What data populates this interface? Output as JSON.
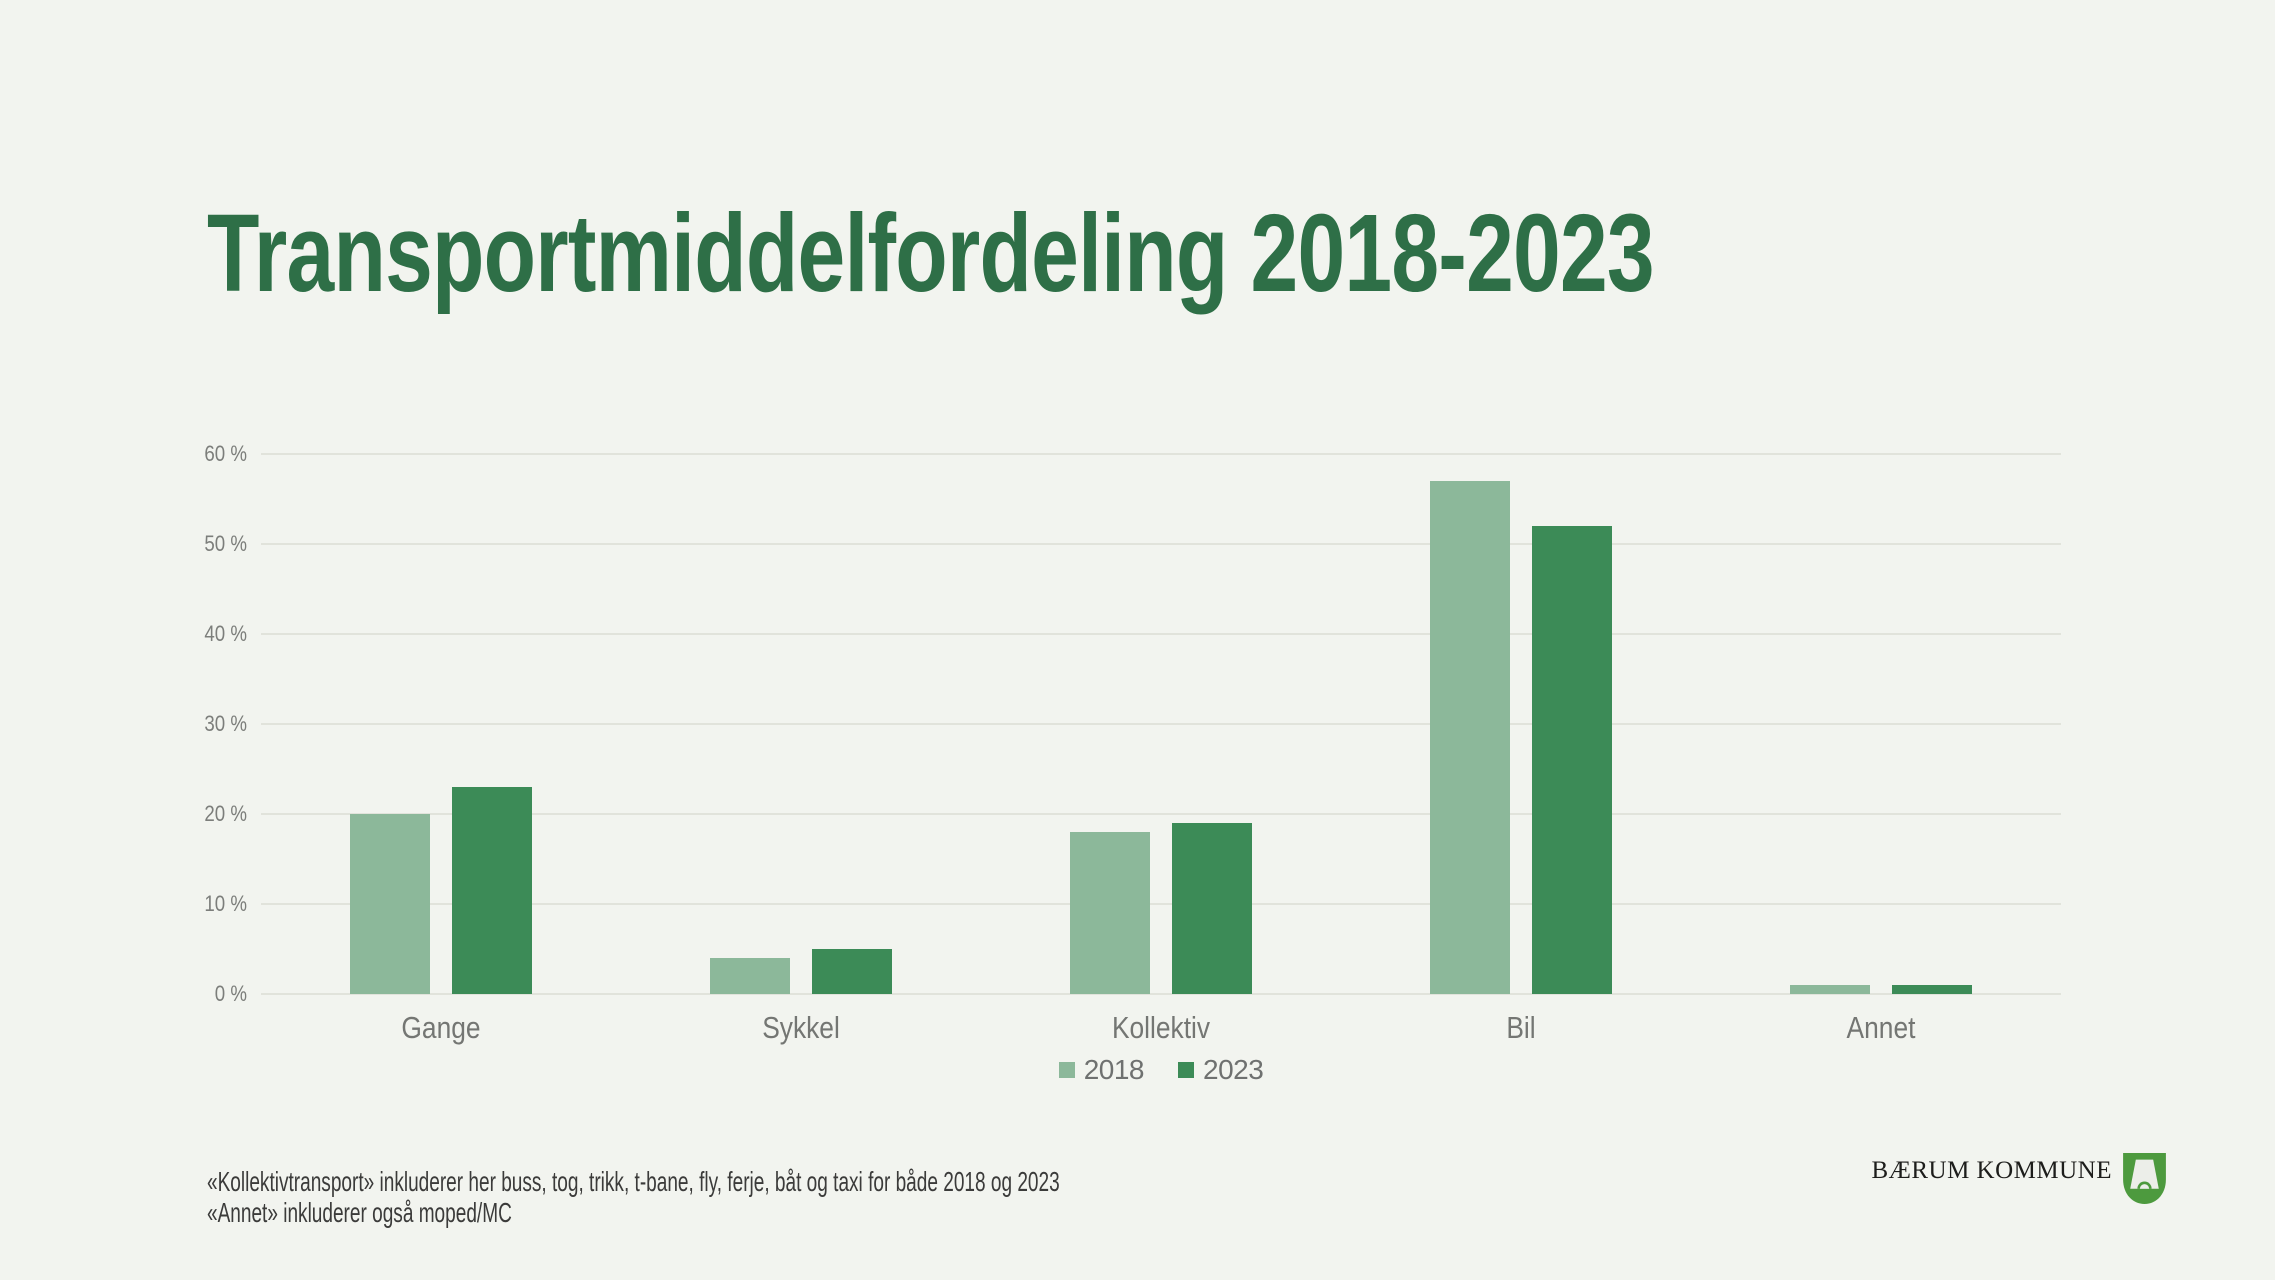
{
  "title": "Transportmiddelfordeling 2018-2023",
  "colors": {
    "background": "#f2f4ef",
    "title-green": "#2e6f47",
    "series-2018": "#8cb89a",
    "series-2023": "#3c8b57",
    "gridline": "#e1e3db",
    "tick-text": "#7c7e7b",
    "category-text": "#747673",
    "legend-text": "#6f7170",
    "footnote-text": "#3b3b3a",
    "logo-text": "#1d1d1b",
    "shield-green": "#4d9a3e"
  },
  "chart_data": {
    "type": "bar",
    "title": "Transportmiddelfordeling 2018-2023",
    "categories": [
      "Gange",
      "Sykkel",
      "Kollektiv",
      "Bil",
      "Annet"
    ],
    "series": [
      {
        "name": "2018",
        "color": "#8cb89a",
        "values": [
          20,
          4,
          18,
          57,
          1
        ]
      },
      {
        "name": "2023",
        "color": "#3c8b57",
        "values": [
          23,
          5,
          19,
          52,
          1
        ]
      }
    ],
    "unit": "%",
    "ylim": [
      0,
      60
    ],
    "y_tick_step": 10,
    "y_ticks": [
      "0 %",
      "10 %",
      "20 %",
      "30 %",
      "40 %",
      "50 %",
      "60 %"
    ],
    "grid": true,
    "legend_position": "bottom-center"
  },
  "footnotes": {
    "line1": "«Kollektivtransport» inkluderer her buss, tog, trikk, t-bane, fly, ferje, båt og taxi for både 2018 og 2023",
    "line2": "«Annet» inkluderer også moped/MC"
  },
  "logo": {
    "text": "BÆRUM KOMMUNE",
    "crest": "baerum-lime-kiln-crest"
  }
}
